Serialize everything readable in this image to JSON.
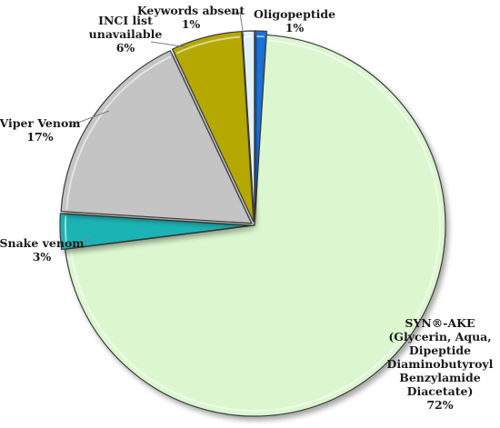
{
  "chart_data": {
    "type": "pie",
    "title": "",
    "slices": [
      {
        "label_lines": [
          "Oligopeptide",
          "1%"
        ],
        "value": 1,
        "color": "#1f6fd6"
      },
      {
        "label_lines": [
          "SYN®-AKE",
          "(Glycerin, Aqua,",
          "Dipeptide",
          "Diaminobutyroyl",
          "Benzylamide",
          "Diacetate)",
          "72%"
        ],
        "value": 72,
        "color": "#dcf7cf"
      },
      {
        "label_lines": [
          "Snake venom",
          "3%"
        ],
        "value": 3,
        "color": "#1fb3b5"
      },
      {
        "label_lines": [
          "Viper Venom",
          "17%"
        ],
        "value": 17,
        "color": "#c4c4c4"
      },
      {
        "label_lines": [
          "INCI list",
          "unavailable",
          "6%"
        ],
        "value": 6,
        "color": "#b5a800"
      },
      {
        "label_lines": [
          "Keywords absent",
          "1%"
        ],
        "value": 1,
        "color": "#e3f1fb"
      }
    ],
    "legend": "none"
  }
}
